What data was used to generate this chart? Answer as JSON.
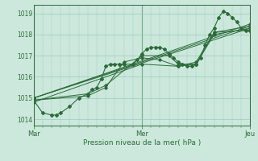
{
  "xlabel": "Pression niveau de la mer( hPa )",
  "bg_color": "#cce8dc",
  "grid_color": "#99ccbb",
  "line_color": "#2d6b3a",
  "ylim": [
    1013.7,
    1019.4
  ],
  "yticks": [
    1014,
    1015,
    1016,
    1017,
    1018,
    1019
  ],
  "xtick_labels": [
    "Mar",
    "Mer",
    "Jeu"
  ],
  "xtick_pos": [
    0,
    48,
    96
  ],
  "total_hours": 96,
  "lines_with_markers": [
    [
      0,
      1014.9,
      4,
      1014.3,
      8,
      1014.2,
      10,
      1014.2,
      12,
      1014.3,
      16,
      1014.6,
      20,
      1015.0,
      24,
      1015.2,
      26,
      1015.4,
      28,
      1015.5,
      30,
      1015.9,
      32,
      1016.5,
      34,
      1016.6,
      36,
      1016.6,
      38,
      1016.6,
      40,
      1016.6,
      44,
      1016.6,
      46,
      1016.8,
      48,
      1017.1,
      50,
      1017.3,
      52,
      1017.4,
      54,
      1017.4,
      56,
      1017.4,
      58,
      1017.3,
      60,
      1017.1,
      62,
      1016.9,
      64,
      1016.7,
      66,
      1016.6,
      68,
      1016.5,
      70,
      1016.5,
      72,
      1016.6,
      74,
      1016.9,
      76,
      1017.5,
      78,
      1018.0,
      80,
      1018.3,
      82,
      1018.8,
      84,
      1019.1,
      86,
      1019.0,
      88,
      1018.8,
      90,
      1018.6,
      92,
      1018.3,
      94,
      1018.2,
      96,
      1018.2
    ]
  ],
  "lines_smooth": [
    [
      0,
      1015.0,
      96,
      1018.5
    ],
    [
      0,
      1015.0,
      96,
      1018.4
    ],
    [
      0,
      1015.0,
      96,
      1018.3
    ],
    [
      0,
      1014.8,
      48,
      1016.6,
      64,
      1016.5,
      72,
      1016.6,
      80,
      1018.1,
      96,
      1018.2
    ],
    [
      0,
      1014.9,
      24,
      1015.2,
      32,
      1015.6,
      48,
      1017.0,
      60,
      1017.0,
      64,
      1016.6,
      72,
      1016.6,
      80,
      1018.0,
      96,
      1018.3
    ],
    [
      0,
      1014.9,
      24,
      1015.1,
      32,
      1015.5,
      40,
      1016.7,
      48,
      1016.9,
      56,
      1016.8,
      64,
      1016.5,
      72,
      1016.7,
      80,
      1018.1,
      96,
      1018.4
    ]
  ]
}
